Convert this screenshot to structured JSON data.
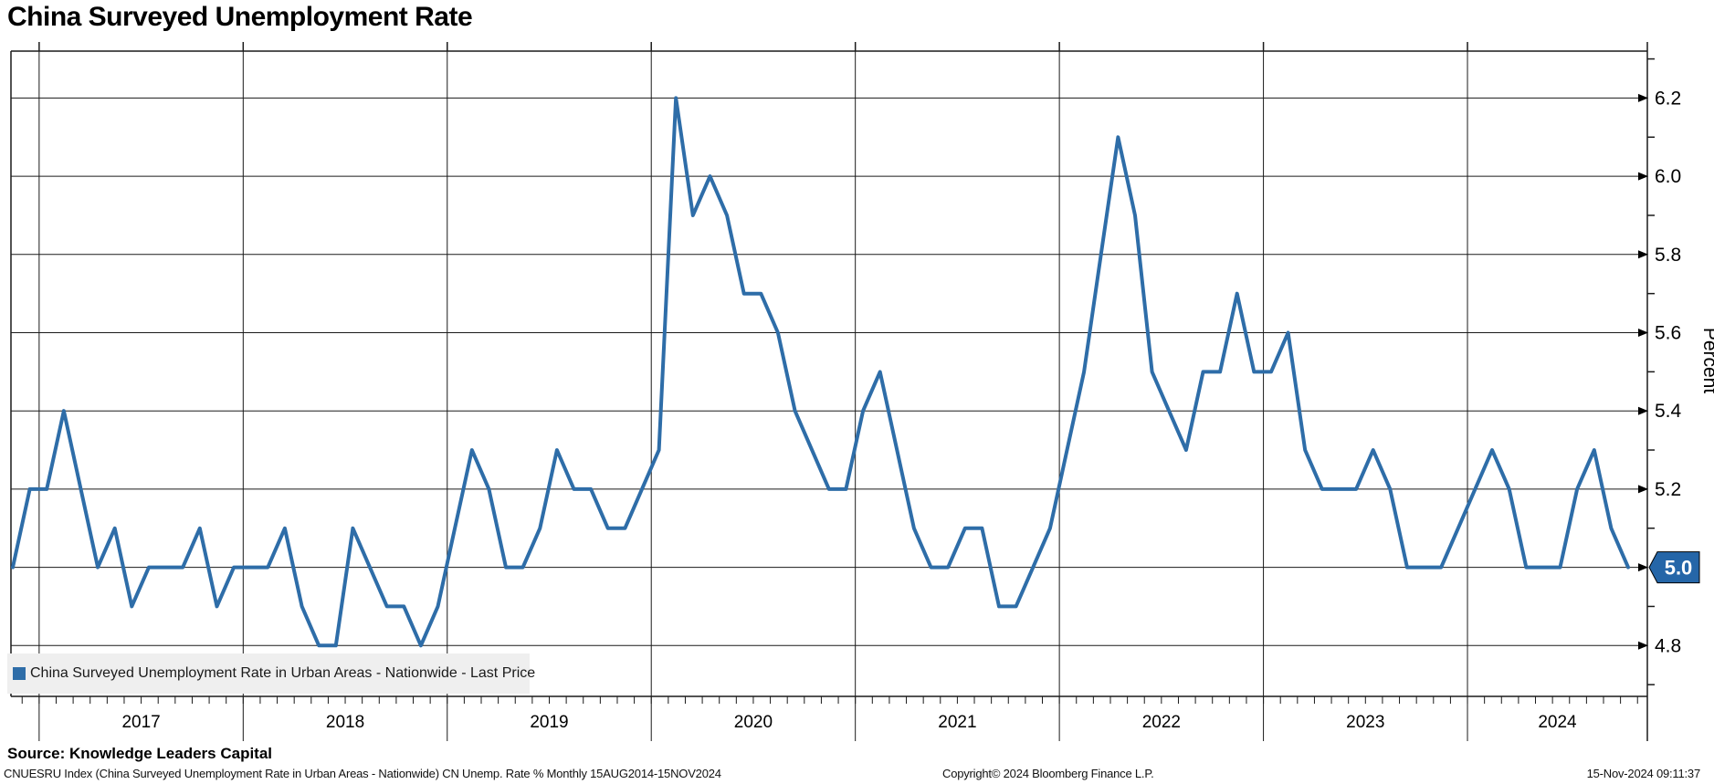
{
  "title": "China Surveyed Unemployment Rate",
  "legend": {
    "label": "China Surveyed Unemployment Rate in Urban Areas - Nationwide - Last Price",
    "swatch_color": "#2e6da8"
  },
  "last_price": {
    "value": "5.0",
    "box_color": "#2566a8",
    "text_color": "#ffffff"
  },
  "footer": {
    "source": "Source: Knowledge Leaders Capital",
    "ticker_line": "CNUESRU Index (China Surveyed Unemployment Rate in Urban Areas - Nationwide) CN Unemp. Rate %  Monthly 15AUG2014-15NOV2024",
    "copyright": "Copyright© 2024 Bloomberg Finance L.P.",
    "timestamp": "15-Nov-2024 09:11:37"
  },
  "chart_data": {
    "type": "line",
    "title": "China Surveyed Unemployment Rate",
    "series_name": "China Surveyed Unemployment Rate in Urban Areas - Nationwide - Last Price",
    "x_start": "2016-11",
    "x_end": "2024-10",
    "frequency": "monthly",
    "values": [
      5.0,
      5.2,
      5.2,
      5.4,
      5.2,
      5.0,
      5.1,
      4.9,
      5.0,
      5.0,
      5.0,
      5.1,
      4.9,
      5.0,
      5.0,
      5.0,
      5.1,
      4.9,
      4.8,
      4.8,
      5.1,
      5.0,
      4.9,
      4.9,
      4.8,
      4.9,
      5.1,
      5.3,
      5.2,
      5.0,
      5.0,
      5.1,
      5.3,
      5.2,
      5.2,
      5.1,
      5.1,
      5.2,
      5.3,
      6.2,
      5.9,
      6.0,
      5.9,
      5.7,
      5.7,
      5.6,
      5.4,
      5.3,
      5.2,
      5.2,
      5.4,
      5.5,
      5.3,
      5.1,
      5.0,
      5.0,
      5.1,
      5.1,
      4.9,
      4.9,
      5.0,
      5.1,
      5.3,
      5.5,
      5.8,
      6.1,
      5.9,
      5.5,
      5.4,
      5.3,
      5.5,
      5.5,
      5.7,
      5.5,
      5.5,
      5.6,
      5.3,
      5.2,
      5.2,
      5.2,
      5.3,
      5.2,
      5.0,
      5.0,
      5.0,
      5.1,
      5.2,
      5.3,
      5.2,
      5.0,
      5.0,
      5.0,
      5.2,
      5.3,
      5.1,
      5.0
    ],
    "ylabel": "Percent",
    "ylim": [
      4.67,
      6.32
    ],
    "y_major_tick_labels": [
      "6.2",
      "6.0",
      "5.8",
      "5.6",
      "5.4",
      "5.2",
      "4.8"
    ],
    "y_major_step": 0.2,
    "y_minor_step": 0.1,
    "x_year_labels": [
      "2017",
      "2018",
      "2019",
      "2020",
      "2021",
      "2022",
      "2023",
      "2024"
    ],
    "grid": "on",
    "legend_position": "bottom-left",
    "line_color": "#2e6da8",
    "grid_color": "#1a1a1a",
    "last_price_label": "5.0"
  }
}
